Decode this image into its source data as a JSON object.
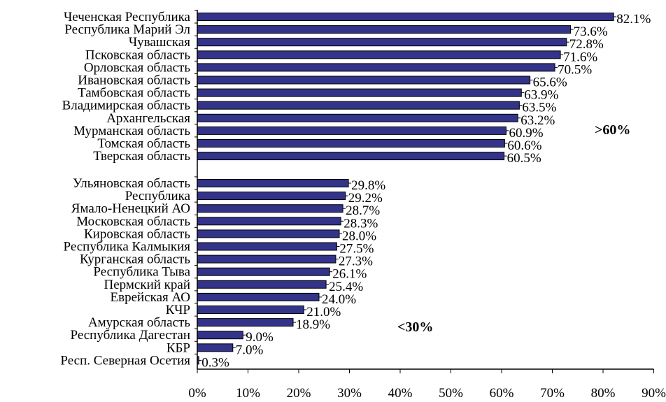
{
  "chart_data": {
    "type": "bar",
    "orientation": "horizontal",
    "title": "",
    "xlabel": "",
    "ylabel": "",
    "xlim": [
      0,
      90
    ],
    "x_ticks": [
      "0%",
      "10%",
      "20%",
      "30%",
      "40%",
      "50%",
      "60%",
      "70%",
      "80%",
      "90%"
    ],
    "grid": false,
    "bar_color": "#33338a",
    "groups": [
      {
        "label": ">60%",
        "categories": [
          "Чеченская Республика",
          "Республика Марий Эл",
          "Чувашская",
          "Псковская область",
          "Орловская область",
          "Ивановская область",
          "Тамбовская область",
          "Владимирская область",
          "Архангельская",
          "Мурманская область",
          "Томская область",
          "Тверская область"
        ],
        "values": [
          82.1,
          73.6,
          72.8,
          71.6,
          70.5,
          65.6,
          63.9,
          63.5,
          63.2,
          60.9,
          60.6,
          60.5
        ],
        "value_labels": [
          "82.1%",
          "73.6%",
          "72.8%",
          "71.6%",
          "70.5%",
          "65.6%",
          "63.9%",
          "63.5%",
          "63.2%",
          "60.9%",
          "60.6%",
          "60.5%"
        ]
      },
      {
        "label": "<30%",
        "categories": [
          "Ульяновская область",
          "Республика",
          "Ямало-Ненецкий АО",
          "Московская область",
          "Кировская область",
          "Республика Калмыкия",
          "Курганская область",
          "Республика Тыва",
          "Пермский край",
          "Еврейская АО",
          "КЧР",
          "Амурская область",
          "Республика Дагестан",
          "КБР",
          "Респ. Северная Осетия"
        ],
        "values": [
          29.8,
          29.2,
          28.7,
          28.3,
          28.0,
          27.5,
          27.3,
          26.1,
          25.4,
          24.0,
          21.0,
          18.9,
          9.0,
          7.0,
          0.3
        ],
        "value_labels": [
          "29.8%",
          "29.2%",
          "28.7%",
          "28.3%",
          "28.0%",
          "27.5%",
          "27.3%",
          "26.1%",
          "25.4%",
          "24.0%",
          "21.0%",
          "18.9%",
          "9.0%",
          "7.0%",
          "0.3%"
        ]
      }
    ]
  }
}
